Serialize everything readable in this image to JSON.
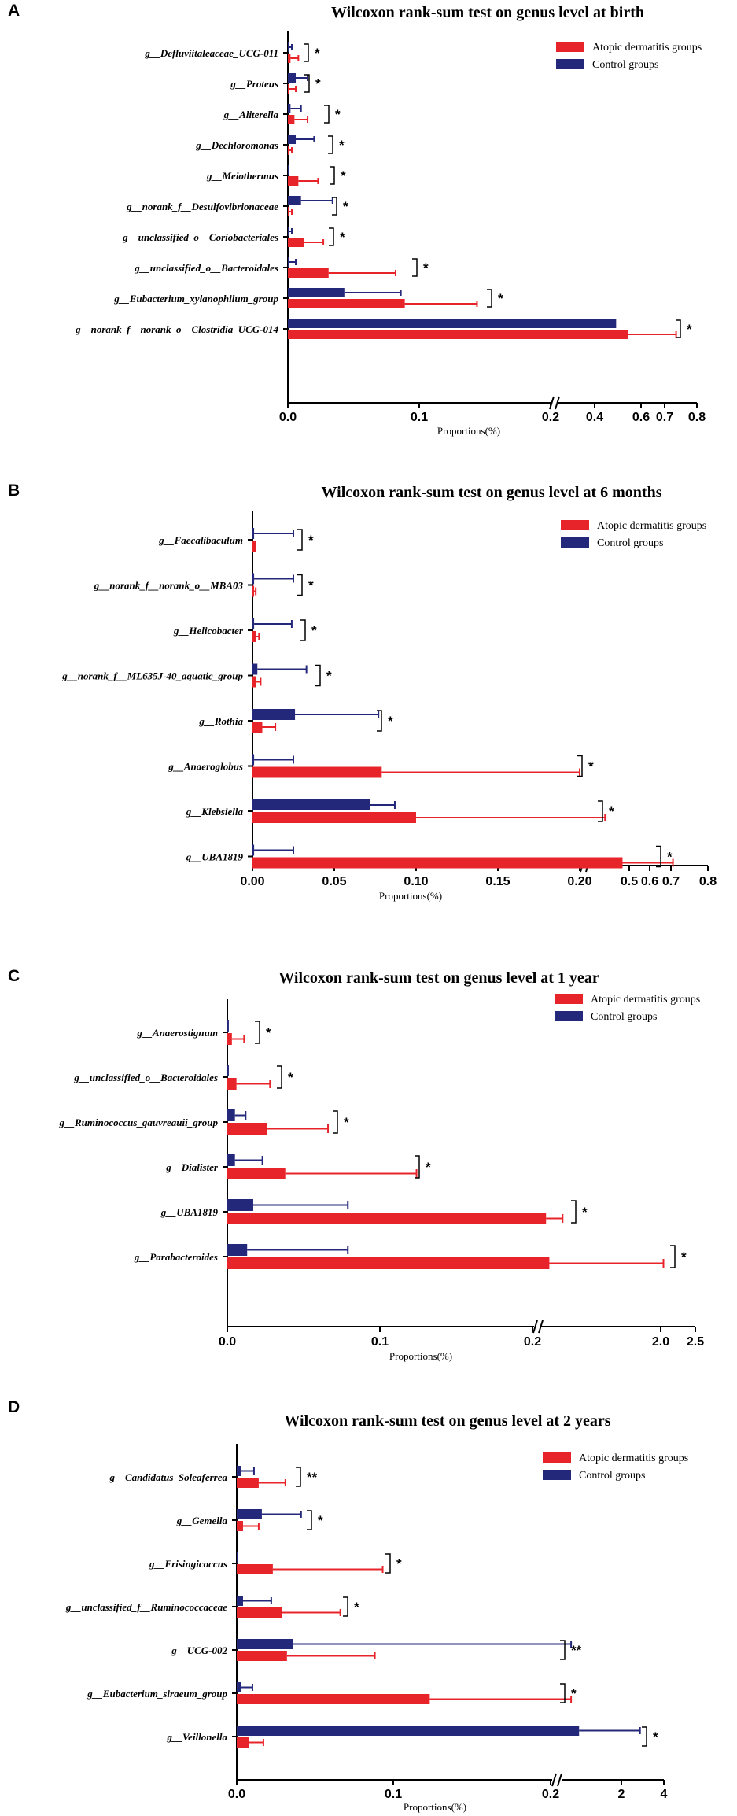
{
  "colors": {
    "ad": "#e8242b",
    "control": "#24287a",
    "axis": "#000000",
    "text": "#000000"
  },
  "chart_data": [
    {
      "panel_letter": "A",
      "type": "bar",
      "orientation": "horizontal",
      "title": "Wilcoxon rank-sum test on genus level at birth",
      "xlabel": "Proportions(%)",
      "legend": [
        "Atopic dermatitis groups",
        "Control groups"
      ],
      "axis_break": {
        "from": 0.2,
        "to": 0.2
      },
      "xticks": [
        "0.0",
        "0.1",
        "0.2",
        "0.4",
        "0.6",
        "0.7",
        "0.8"
      ],
      "categories": [
        "g__Defluviitaleaceae_UCG-011",
        "g__Proteus",
        "g__Aliterella",
        "g__Dechloromonas",
        "g__Meiothermus",
        "g__norank_f__Desulfovibrionaceae",
        "g__unclassified_o__Coriobacteriales",
        "g__unclassified_o__Bacteroidales",
        "g__Eubacterium_xylanophilum_group",
        "g__norank_f__norank_o__Clostridia_UCG-014"
      ],
      "series": [
        {
          "name": "Atopic dermatitis groups",
          "values": [
            0.002,
            0.001,
            0.005,
            0.001,
            0.008,
            0.001,
            0.012,
            0.031,
            0.089,
            0.5
          ],
          "errors": [
            0.008,
            0.006,
            0.015,
            0.003,
            0.023,
            0.003,
            0.027,
            0.082,
            0.144,
            0.71
          ]
        },
        {
          "name": "Control groups",
          "values": [
            0.001,
            0.006,
            0.002,
            0.006,
            0.001,
            0.01,
            0.001,
            0.001,
            0.043,
            0.45
          ],
          "errors": [
            0.003,
            0.015,
            0.01,
            0.02,
            0.001,
            0.034,
            0.003,
            0.006,
            0.086,
            0.45
          ]
        }
      ],
      "significance": [
        "*",
        "*",
        "*",
        "*",
        "*",
        "*",
        "*",
        "*",
        "*",
        "*"
      ]
    },
    {
      "panel_letter": "B",
      "type": "bar",
      "orientation": "horizontal",
      "title": "Wilcoxon rank-sum test on genus level at 6 months",
      "xlabel": "Proportions(%)",
      "legend": [
        "Atopic dermatitis groups",
        "Control groups"
      ],
      "axis_break": {
        "from": 0.2,
        "to": 0.2
      },
      "xticks": [
        "0.00",
        "0.05",
        "0.10",
        "0.15",
        "0.20",
        "0.5",
        "0.6",
        "0.7",
        "0.8"
      ],
      "categories": [
        "g__Faecalibaculum",
        "g__norank_f__norank_o__MBA03",
        "g__Helicobacter",
        "g__norank_f__ML635J-40_aquatic_group",
        "g__Rothia",
        "g__Anaeroglobus",
        "g__Klebsiella",
        "g__UBA1819"
      ],
      "series": [
        {
          "name": "Atopic dermatitis groups",
          "values": [
            0.002,
            0.001,
            0.002,
            0.002,
            0.006,
            0.079,
            0.1,
            0.36
          ],
          "errors": [
            0.002,
            0.002,
            0.004,
            0.005,
            0.014,
            0.2,
            0.27,
            0.62
          ]
        },
        {
          "name": "Control groups",
          "values": [
            0.001,
            0.001,
            0.001,
            0.003,
            0.026,
            0.001,
            0.072,
            0.001
          ],
          "errors": [
            0.025,
            0.025,
            0.024,
            0.033,
            0.077,
            0.025,
            0.087,
            0.025
          ]
        }
      ],
      "significance": [
        "*",
        "*",
        "*",
        "*",
        "*",
        "*",
        "*",
        "*"
      ]
    },
    {
      "panel_letter": "C",
      "type": "bar",
      "orientation": "horizontal",
      "title": "Wilcoxon rank-sum test on genus level at 1 year",
      "xlabel": "Proportions(%)",
      "legend": [
        "Atopic dermatitis groups",
        "Control groups"
      ],
      "axis_break": {
        "from": 0.2,
        "to": 0.2
      },
      "xticks": [
        "0.0",
        "0.1",
        "0.2",
        "2.0",
        "2.5"
      ],
      "categories": [
        "g__Anaerostignum",
        "g__unclassified_o__Bacteroidales",
        "g__Ruminococcus_gauvreauii_group",
        "g__Dialister",
        "g__UBA1819",
        "g__Parabacteroides"
      ],
      "series": [
        {
          "name": "Atopic dermatitis groups",
          "values": [
            0.003,
            0.006,
            0.026,
            0.038,
            0.25,
            0.3
          ],
          "errors": [
            0.011,
            0.028,
            0.066,
            0.124,
            0.5,
            2.02
          ]
        },
        {
          "name": "Control groups",
          "values": [
            0.001,
            0.001,
            0.005,
            0.005,
            0.017,
            0.013
          ],
          "errors": [
            0.001,
            0.001,
            0.012,
            0.023,
            0.079,
            0.079
          ]
        }
      ],
      "significance": [
        "*",
        "*",
        "*",
        "*",
        "*",
        "*"
      ]
    },
    {
      "panel_letter": "D",
      "type": "bar",
      "orientation": "horizontal",
      "title": "Wilcoxon rank-sum test on genus level at 2 years",
      "xlabel": "Proportions(%)",
      "legend": [
        "Atopic dermatitis groups",
        "Control groups"
      ],
      "axis_break": {
        "from": 0.2,
        "to": 0.2
      },
      "xticks": [
        "0.0",
        "0.1",
        "0.2",
        "2",
        "4"
      ],
      "categories": [
        "g__Candidatus_Soleaferrea",
        "g__Gemella",
        "g__Frisingicoccus",
        "g__unclassified_f__Ruminococcaceae",
        "g__UCG-002",
        "g__Eubacterium_siraeum_group",
        "g__Veillonella"
      ],
      "series": [
        {
          "name": "Atopic dermatitis groups",
          "values": [
            0.014,
            0.004,
            0.023,
            0.029,
            0.032,
            0.123,
            0.008
          ],
          "errors": [
            0.031,
            0.014,
            0.093,
            0.066,
            0.088,
            0.5,
            0.017
          ]
        },
        {
          "name": "Control groups",
          "values": [
            0.003,
            0.016,
            0.001,
            0.004,
            0.036,
            0.003,
            0.8
          ],
          "errors": [
            0.011,
            0.041,
            0.001,
            0.022,
            0.5,
            0.01,
            3.1
          ]
        }
      ],
      "significance": [
        "**",
        "*",
        "*",
        "*",
        "**",
        "*",
        "*"
      ]
    }
  ]
}
